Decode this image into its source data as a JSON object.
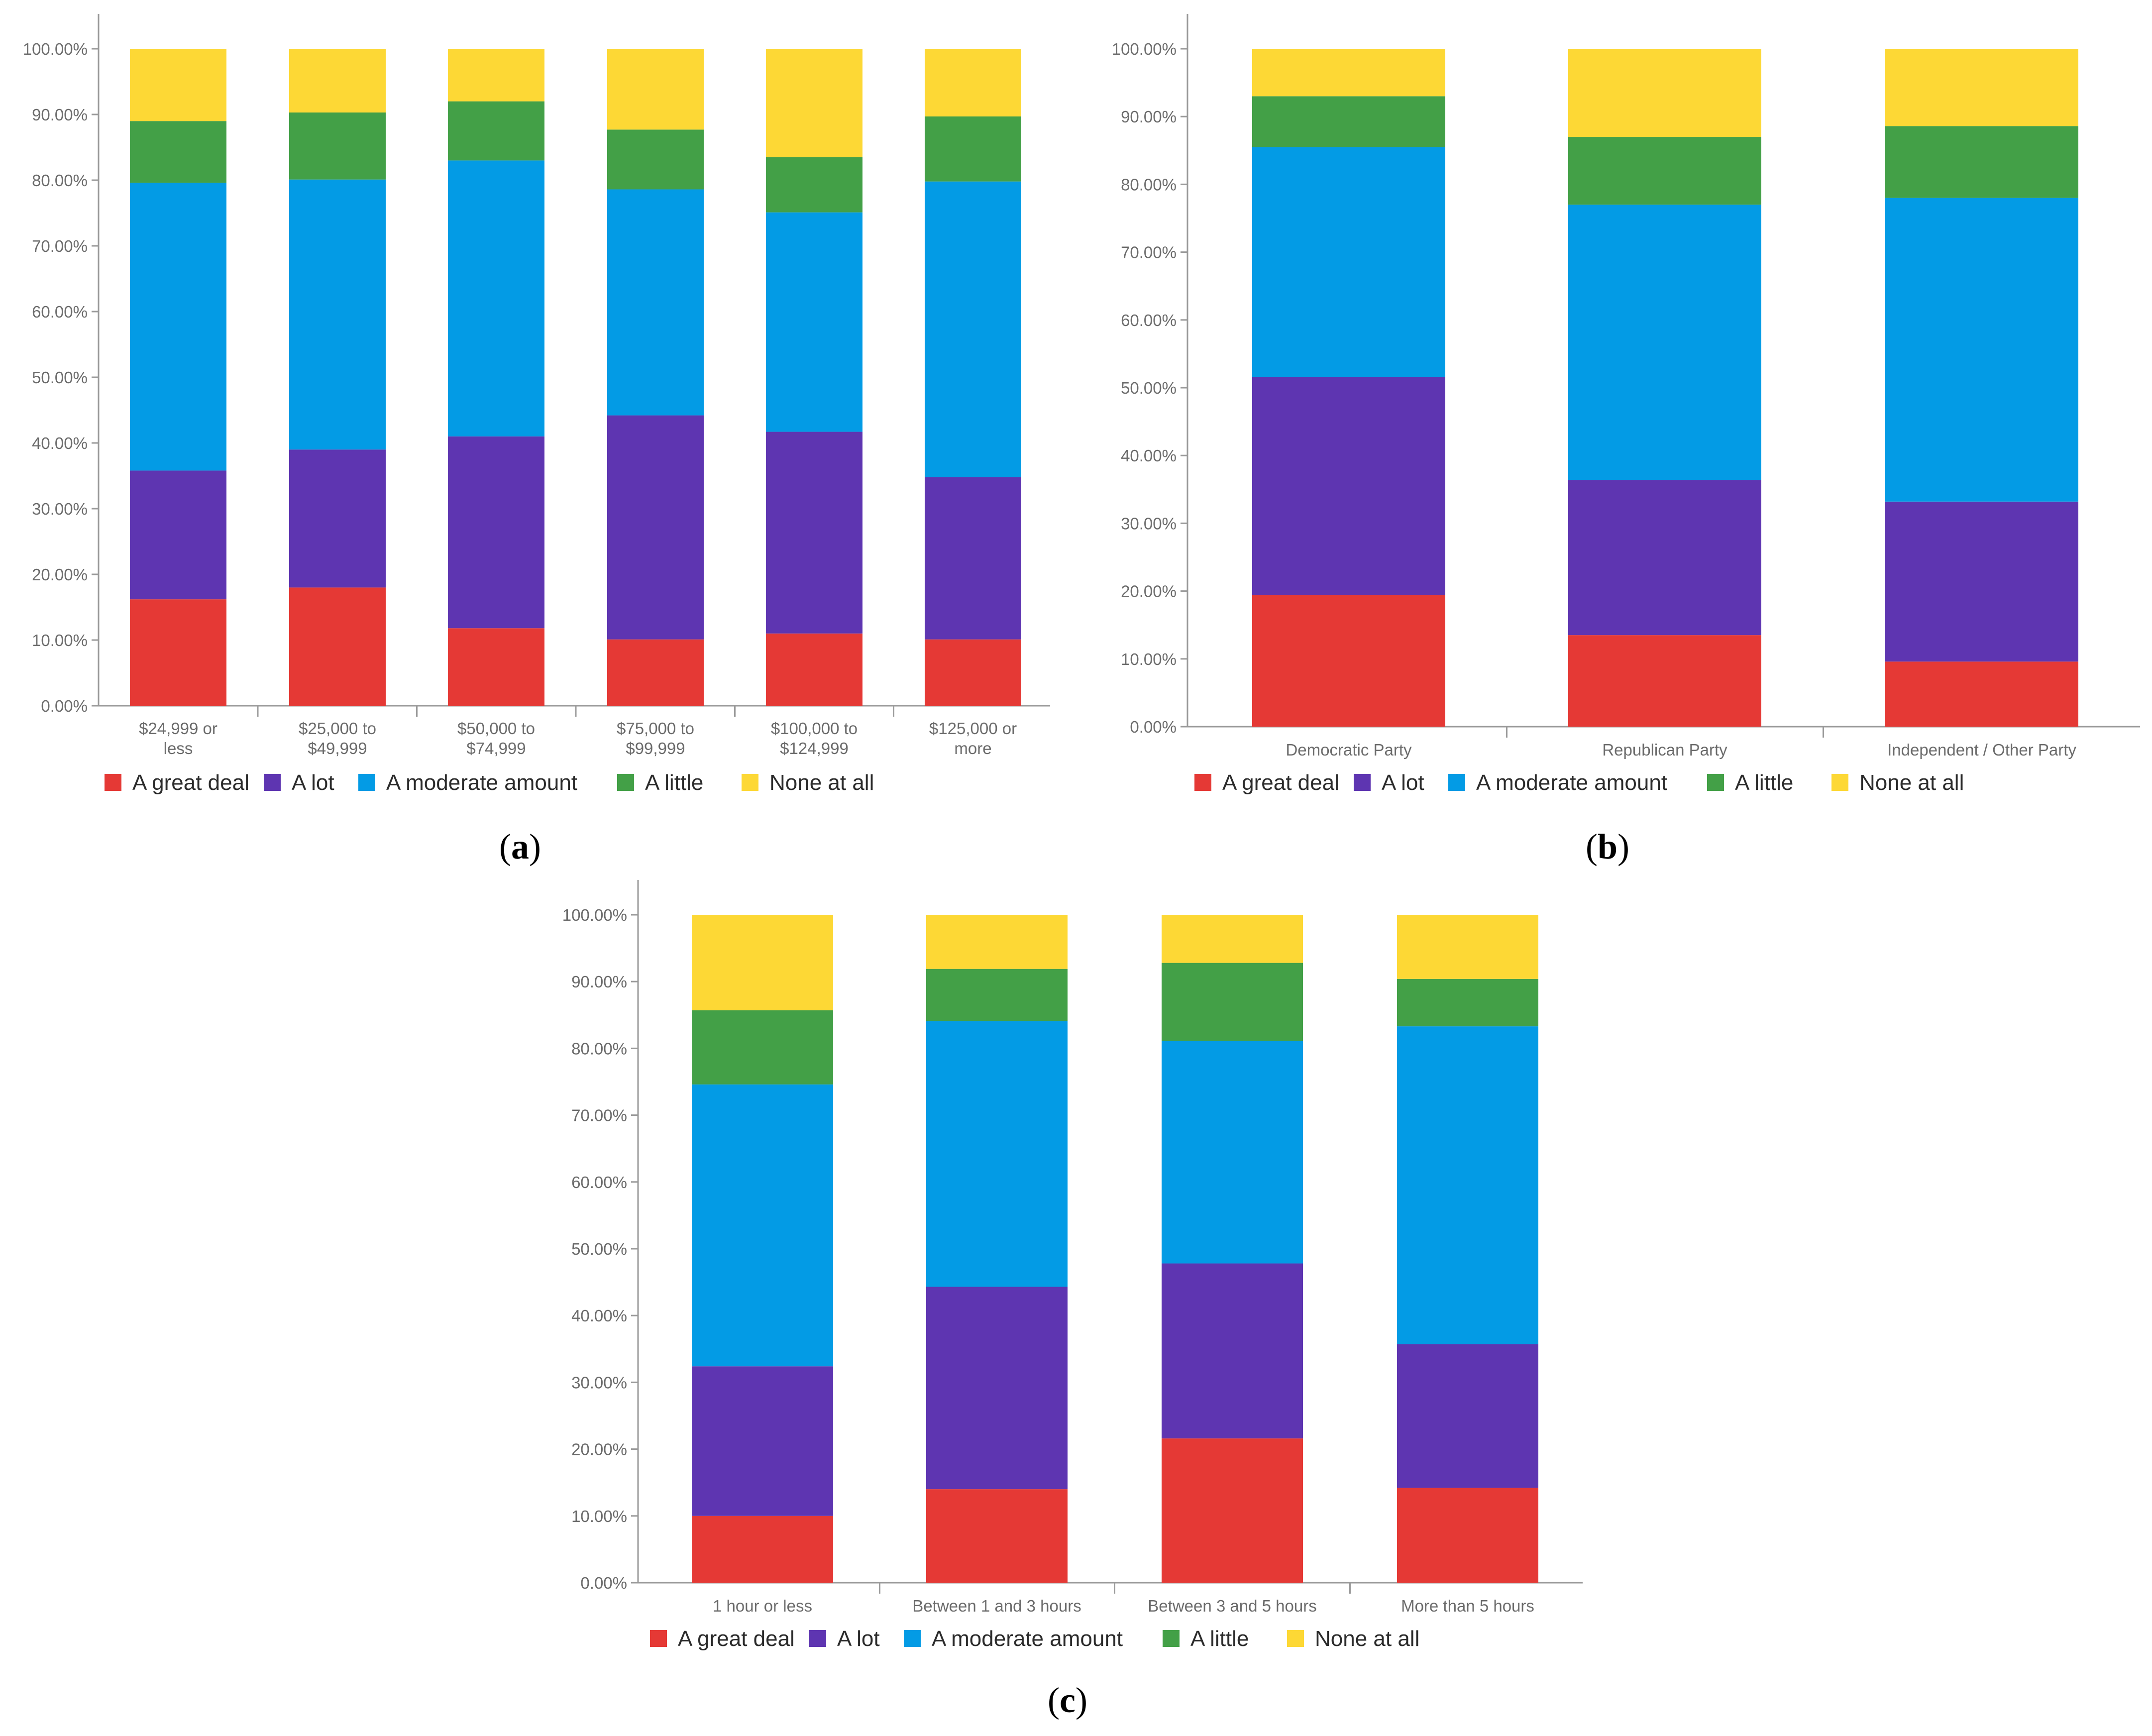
{
  "colors": {
    "great_deal": "#e53935",
    "a_lot": "#5e35b1",
    "moderate": "#039be5",
    "little": "#43a047",
    "none": "#fdd835"
  },
  "chart_data": [
    {
      "panel": "a",
      "type": "bar",
      "stacked": true,
      "categories": [
        [
          "$24,999 or",
          "less"
        ],
        [
          "$25,000 to",
          "$49,999"
        ],
        [
          "$50,000 to",
          "$74,999"
        ],
        [
          "$75,000 to",
          "$99,999"
        ],
        [
          "$100,000 to",
          "$124,999"
        ],
        [
          "$125,000 or",
          "more"
        ]
      ],
      "series": [
        {
          "name": "A great deal",
          "key": "great_deal",
          "values": [
            16.2,
            18.0,
            11.8,
            10.1,
            11.0,
            10.1
          ]
        },
        {
          "name": "A lot",
          "key": "a_lot",
          "values": [
            19.6,
            21.0,
            29.2,
            34.1,
            30.7,
            24.7
          ]
        },
        {
          "name": "A moderate amount",
          "key": "moderate",
          "values": [
            43.8,
            41.1,
            42.0,
            34.4,
            33.4,
            45.0
          ]
        },
        {
          "name": "A little",
          "key": "little",
          "values": [
            9.4,
            10.2,
            9.0,
            9.1,
            8.4,
            9.9
          ]
        },
        {
          "name": "None at all",
          "key": "none",
          "values": [
            11.0,
            9.7,
            8.0,
            12.3,
            16.5,
            10.3
          ]
        }
      ],
      "yticks": [
        "0.00%",
        "10.00%",
        "20.00%",
        "30.00%",
        "40.00%",
        "50.00%",
        "60.00%",
        "70.00%",
        "80.00%",
        "90.00%",
        "100.00%"
      ],
      "ylim": [
        0,
        100
      ],
      "legend": [
        "A great deal",
        "A lot",
        "A moderate amount",
        "A little",
        "None at all"
      ],
      "label": [
        "(",
        "a",
        ")"
      ]
    },
    {
      "panel": "b",
      "type": "bar",
      "stacked": true,
      "categories": [
        [
          "Democratic Party"
        ],
        [
          "Republican Party"
        ],
        [
          "Independent / Other Party"
        ]
      ],
      "series": [
        {
          "name": "A great deal",
          "key": "great_deal",
          "values": [
            19.4,
            13.5,
            9.6
          ]
        },
        {
          "name": "A lot",
          "key": "a_lot",
          "values": [
            32.2,
            22.9,
            23.6
          ]
        },
        {
          "name": "A moderate amount",
          "key": "moderate",
          "values": [
            33.9,
            40.6,
            44.8
          ]
        },
        {
          "name": "A little",
          "key": "little",
          "values": [
            7.5,
            10.0,
            10.6
          ]
        },
        {
          "name": "None at all",
          "key": "none",
          "values": [
            7.0,
            13.0,
            11.4
          ]
        }
      ],
      "yticks": [
        "0.00%",
        "10.00%",
        "20.00%",
        "30.00%",
        "40.00%",
        "50.00%",
        "60.00%",
        "70.00%",
        "80.00%",
        "90.00%",
        "100.00%"
      ],
      "ylim": [
        0,
        100
      ],
      "legend": [
        "A great deal",
        "A lot",
        "A moderate amount",
        "A little",
        "None at all"
      ],
      "label": [
        "(",
        "b",
        ")"
      ]
    },
    {
      "panel": "c",
      "type": "bar",
      "stacked": true,
      "categories": [
        [
          "1 hour or less"
        ],
        [
          "Between 1 and 3 hours"
        ],
        [
          "Between 3 and 5 hours"
        ],
        [
          "More than 5 hours"
        ]
      ],
      "series": [
        {
          "name": "A great deal",
          "key": "great_deal",
          "values": [
            10.0,
            14.0,
            21.6,
            14.2
          ]
        },
        {
          "name": "A lot",
          "key": "a_lot",
          "values": [
            22.4,
            30.3,
            26.2,
            21.5
          ]
        },
        {
          "name": "A moderate amount",
          "key": "moderate",
          "values": [
            42.2,
            39.8,
            33.3,
            47.6
          ]
        },
        {
          "name": "A little",
          "key": "little",
          "values": [
            11.1,
            7.8,
            11.7,
            7.1
          ]
        },
        {
          "name": "None at all",
          "key": "none",
          "values": [
            14.3,
            8.1,
            7.2,
            9.6
          ]
        }
      ],
      "yticks": [
        "0.00%",
        "10.00%",
        "20.00%",
        "30.00%",
        "40.00%",
        "50.00%",
        "60.00%",
        "70.00%",
        "80.00%",
        "90.00%",
        "100.00%"
      ],
      "ylim": [
        0,
        100
      ],
      "legend": [
        "A great deal",
        "A lot",
        "A moderate amount",
        "A little",
        "None at all"
      ],
      "label": [
        "(",
        "c",
        ")"
      ]
    }
  ]
}
